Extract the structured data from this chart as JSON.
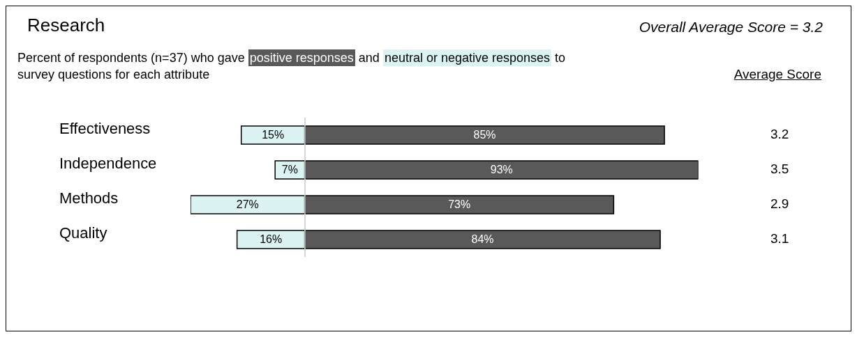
{
  "chart_data": [
    {
      "type": "bar",
      "orientation": "horizontal",
      "title": "Research",
      "subtitle": "Percent of respondents (n=37) who gave",
      "categories": [
        "Effectiveness",
        "Independence",
        "Methods",
        "Quality"
      ],
      "series": [
        {
          "name": "neutral or negative responses",
          "color": "#dcf3f3",
          "values": [
            15,
            7,
            27,
            16
          ],
          "value_labels": [
            "15%",
            "7%",
            "27%",
            "16%"
          ]
        }
      ],
      "legend": "top",
      "tick_labels": "y",
      "grid": false,
      "annotations": [
        "Overall Average Score = 3.2",
        "and",
        "to survey questions for each attribute"
      ]
    },
    {
      "type": "bar",
      "orientation": "horizontal",
      "categories": [
        null,
        null,
        null,
        null
      ],
      "series": [
        {
          "name": "positive responses",
          "color": "#595959",
          "values": [
            85,
            93,
            73,
            84
          ],
          "value_labels": [
            "85%",
            "93%",
            "73%",
            "84%"
          ]
        }
      ],
      "legend": "top",
      "tick_labels": false,
      "grid": false,
      "annotations": [
        "Average Score",
        "3.2",
        "3.5",
        "2.9",
        "3.1"
      ]
    }
  ]
}
